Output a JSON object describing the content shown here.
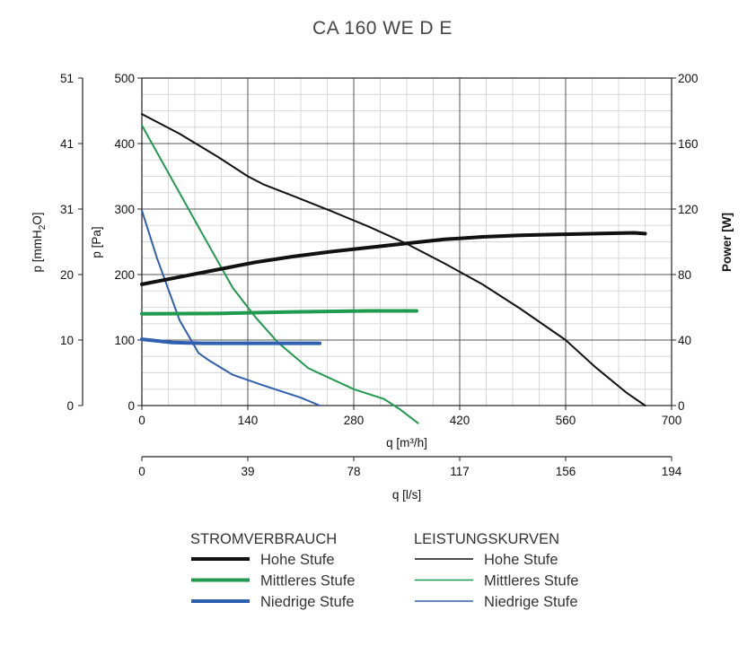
{
  "chart_data": {
    "type": "line",
    "title": "CA 160 WE D E",
    "x": {
      "label": "q [m³/h]",
      "range": [
        0,
        700
      ],
      "ticks": [
        0,
        140,
        280,
        420,
        560,
        700
      ]
    },
    "x2": {
      "label": "q [l/s]",
      "range": [
        0,
        194
      ],
      "ticks": [
        "0",
        "39",
        "78",
        "117",
        "156",
        "194"
      ]
    },
    "y_left": {
      "label": "p [Pa]",
      "range": [
        0,
        500
      ],
      "ticks": [
        0,
        100,
        200,
        300,
        400,
        500
      ]
    },
    "y_left2": {
      "label_main": "p [mmH",
      "label_sub": "2",
      "label_end": "O]",
      "ticks": [
        "0",
        "10",
        "20",
        "31",
        "41",
        "51"
      ]
    },
    "y_right": {
      "label": "Power [W]",
      "range": [
        0,
        200
      ],
      "ticks": [
        0,
        40,
        80,
        120,
        160,
        200
      ]
    },
    "series": [
      {
        "name": "Hohe Stufe",
        "group": "LEISTUNGSKURVEN",
        "axis": "pressure",
        "color": "#111111",
        "width": 2,
        "x": [
          0,
          50,
          100,
          140,
          160,
          200,
          250,
          300,
          350,
          400,
          450,
          500,
          560,
          600,
          640,
          665
        ],
        "y": [
          445,
          415,
          380,
          350,
          338,
          320,
          297,
          273,
          247,
          217,
          185,
          148,
          100,
          58,
          20,
          0
        ]
      },
      {
        "name": "Mittleres Stufe",
        "group": "LEISTUNGSKURVEN",
        "axis": "pressure",
        "color": "#1f9a4e",
        "width": 2,
        "x": [
          0,
          40,
          80,
          120,
          150,
          180,
          220,
          280,
          320,
          340,
          365
        ],
        "y": [
          428,
          345,
          262,
          180,
          135,
          96,
          57,
          25,
          10,
          -5,
          -27
        ]
      },
      {
        "name": "Niedrige Stufe",
        "group": "LEISTUNGSKURVEN",
        "axis": "pressure",
        "color": "#2f5fb0",
        "width": 2,
        "x": [
          0,
          20,
          50,
          75,
          90,
          120,
          160,
          210,
          235
        ],
        "y": [
          298,
          225,
          130,
          80,
          68,
          47,
          31,
          12,
          0
        ]
      },
      {
        "name": "Hohe Stufe",
        "group": "STROMVERBRAUCH",
        "axis": "power",
        "color": "#111111",
        "width": 4,
        "x": [
          0,
          50,
          100,
          150,
          200,
          250,
          300,
          350,
          400,
          450,
          500,
          550,
          600,
          650,
          665
        ],
        "y": [
          74,
          78.5,
          83,
          87.5,
          91,
          94,
          96.5,
          99,
          101.5,
          103,
          104,
          104.5,
          105,
          105.5,
          105
        ]
      },
      {
        "name": "Mittleres Stufe",
        "group": "STROMVERBRAUCH",
        "axis": "power",
        "color": "#1f9a4e",
        "width": 4,
        "x": [
          0,
          100,
          200,
          300,
          363
        ],
        "y": [
          56,
          56.2,
          57.2,
          57.8,
          57.8
        ]
      },
      {
        "name": "Niedrige Stufe",
        "group": "STROMVERBRAUCH",
        "axis": "power",
        "color": "#2f5fb0",
        "width": 4,
        "x": [
          0,
          40,
          80,
          150,
          235
        ],
        "y": [
          40.5,
          38.5,
          38,
          38,
          38
        ]
      }
    ],
    "legend": {
      "groups": [
        {
          "title": "STROMVERBRAUCH",
          "items": [
            {
              "label": "Hohe Stufe",
              "color": "#111111",
              "width": 4
            },
            {
              "label": "Mittleres Stufe",
              "color": "#1f9a4e",
              "width": 4
            },
            {
              "label": "Niedrige Stufe",
              "color": "#2f5fb0",
              "width": 4
            }
          ]
        },
        {
          "title": "LEISTUNGSKURVEN",
          "items": [
            {
              "label": "Hohe Stufe",
              "color": "#111111",
              "width": 1.5
            },
            {
              "label": "Mittleres Stufe",
              "color": "#1f9a4e",
              "width": 1.5
            },
            {
              "label": "Niedrige Stufe",
              "color": "#2f5fb0",
              "width": 1.5
            }
          ]
        }
      ]
    }
  }
}
